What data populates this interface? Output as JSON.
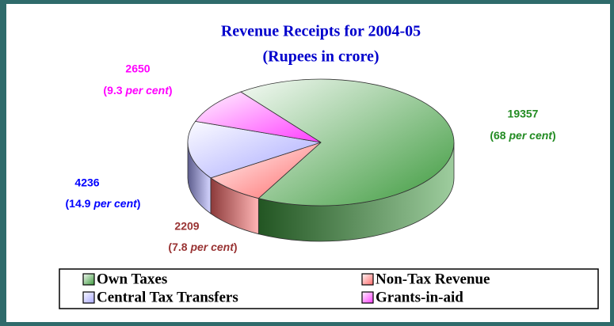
{
  "chart_data": {
    "type": "pie",
    "title": "Revenue Receipts for 2004-05",
    "subtitle": "(Rupees in crore)",
    "categories": [
      "Own Taxes",
      "Non-Tax Revenue",
      "Central Tax Transfers",
      "Grants-in-aid"
    ],
    "values": [
      19357,
      2209,
      4236,
      2650
    ],
    "percents": [
      68,
      7.8,
      14.9,
      9.3
    ],
    "percent_labels": [
      "(68 per cent)",
      "(7.8 per cent)",
      "(14.9 per cent)",
      "(9.3 per cent)"
    ],
    "percent_unit": "per cent",
    "colors": [
      "#3d9a3d",
      "#ff6a6a",
      "#a8a8ff",
      "#ff3dff"
    ],
    "label_colors": [
      "#228b22",
      "#993333",
      "#0000ff",
      "#ff00ff"
    ],
    "legend": "bottom",
    "three_d": true
  }
}
